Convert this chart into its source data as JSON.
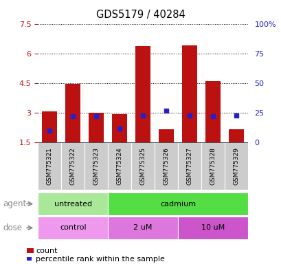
{
  "title": "GDS5179 / 40284",
  "samples": [
    "GSM775321",
    "GSM775322",
    "GSM775323",
    "GSM775324",
    "GSM775325",
    "GSM775326",
    "GSM775327",
    "GSM775328",
    "GSM775329"
  ],
  "count_values": [
    3.08,
    4.48,
    3.0,
    2.95,
    6.38,
    2.18,
    6.42,
    4.62,
    2.18
  ],
  "percentile_values": [
    10,
    22,
    22,
    12,
    23,
    27,
    23,
    22,
    23
  ],
  "ymin": 1.5,
  "ymax": 7.5,
  "yticks": [
    1.5,
    3.0,
    4.5,
    6.0,
    7.5
  ],
  "ytick_labels": [
    "1.5",
    "3",
    "4.5",
    "6",
    "7.5"
  ],
  "right_yticks": [
    0,
    25,
    50,
    75,
    100
  ],
  "right_ytick_labels": [
    "0",
    "25",
    "50",
    "75",
    "100%"
  ],
  "bar_color": "#bb1111",
  "blue_color": "#2222cc",
  "agent_groups": [
    {
      "label": "untreated",
      "start": 0,
      "end": 3,
      "color": "#aae899"
    },
    {
      "label": "cadmium",
      "start": 3,
      "end": 9,
      "color": "#55dd44"
    }
  ],
  "dose_groups": [
    {
      "label": "control",
      "start": 0,
      "end": 3,
      "color": "#ee99ee"
    },
    {
      "label": "2 uM",
      "start": 3,
      "end": 6,
      "color": "#dd77dd"
    },
    {
      "label": "10 uM",
      "start": 6,
      "end": 9,
      "color": "#cc55cc"
    }
  ],
  "xlabel_agent": "agent",
  "xlabel_dose": "dose",
  "legend_count": "count",
  "legend_pct": "percentile rank within the sample",
  "tick_area_color": "#cccccc",
  "plot_bg": "#ffffff"
}
